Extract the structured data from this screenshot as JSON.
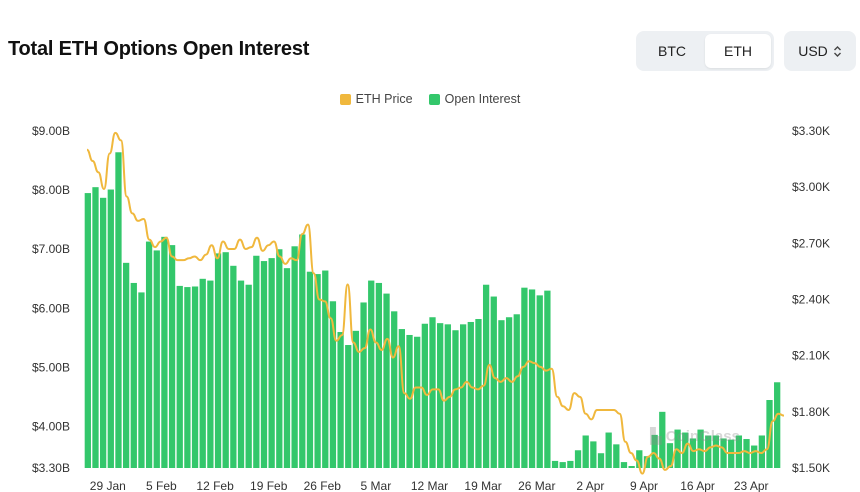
{
  "header": {
    "title": "Total ETH Options Open Interest",
    "asset_tabs": [
      {
        "label": "BTC",
        "active": false
      },
      {
        "label": "ETH",
        "active": true
      }
    ],
    "currency": {
      "label": "USD",
      "icon": "chevron-up-down-icon"
    }
  },
  "colors": {
    "price": "#f0b83d",
    "open_interest": "#33c76b",
    "gridline": "#eeeeee"
  },
  "chart_data": {
    "type": "bar",
    "title": "Total ETH Options Open Interest",
    "legend": {
      "position": "top-center",
      "entries": [
        "ETH Price",
        "Open Interest"
      ]
    },
    "grid": false,
    "x_tick_labels": [
      "29 Jan",
      "5 Feb",
      "12 Feb",
      "19 Feb",
      "26 Feb",
      "5 Mar",
      "12 Mar",
      "19 Mar",
      "26 Mar",
      "2 Apr",
      "9 Apr",
      "16 Apr",
      "23 Apr"
    ],
    "left_axis": {
      "ticks": [
        "$3.30B",
        "$4.00B",
        "$5.00B",
        "$6.00B",
        "$7.00B",
        "$8.00B",
        "$9.00B"
      ],
      "ylim": [
        3.3,
        9.0
      ],
      "unit": "B USD"
    },
    "right_axis": {
      "ticks": [
        "$1.50K",
        "$1.80K",
        "$2.10K",
        "$2.40K",
        "$2.70K",
        "$3.00K",
        "$3.30K"
      ],
      "ylim": [
        1.5,
        3.3
      ],
      "unit": "K USD"
    },
    "x_start_date": "2025-01-29",
    "series": [
      {
        "name": "Open Interest",
        "type": "bar",
        "axis": "left",
        "values": [
          7.95,
          8.05,
          7.87,
          8.01,
          8.64,
          6.77,
          6.43,
          6.27,
          7.13,
          6.98,
          7.21,
          7.07,
          6.38,
          6.36,
          6.37,
          6.5,
          6.47,
          6.93,
          6.95,
          6.72,
          6.47,
          6.4,
          6.89,
          6.8,
          6.85,
          7.0,
          6.68,
          7.05,
          7.25,
          6.62,
          6.58,
          6.64,
          6.12,
          5.6,
          5.38,
          5.62,
          6.1,
          6.47,
          6.43,
          6.25,
          5.95,
          5.65,
          5.55,
          5.52,
          5.74,
          5.85,
          5.75,
          5.73,
          5.63,
          5.73,
          5.77,
          5.82,
          6.4,
          6.2,
          5.8,
          5.85,
          5.9,
          6.35,
          6.32,
          6.22,
          6.3,
          3.42,
          3.4,
          3.42,
          3.6,
          3.85,
          3.75,
          3.55,
          3.9,
          3.7,
          3.4,
          3.28,
          3.6,
          3.5,
          3.86,
          4.25,
          3.72,
          3.95,
          3.9,
          3.8,
          3.95,
          3.85,
          3.85,
          3.8,
          3.78,
          3.85,
          3.79,
          3.68,
          3.85,
          4.45,
          4.75
        ]
      },
      {
        "name": "ETH Price",
        "type": "line",
        "axis": "right",
        "values": [
          3.2,
          3.14,
          3.08,
          2.99,
          3.18,
          3.29,
          3.25,
          2.95,
          2.86,
          2.82,
          2.83,
          2.72,
          2.68,
          2.71,
          2.73,
          2.63,
          2.61,
          2.61,
          2.62,
          2.63,
          2.61,
          2.64,
          2.69,
          2.62,
          2.71,
          2.67,
          2.67,
          2.72,
          2.67,
          2.68,
          2.73,
          2.66,
          2.69,
          2.71,
          2.63,
          2.59,
          2.62,
          2.61,
          2.75,
          2.8,
          2.54,
          2.4,
          2.39,
          2.3,
          2.18,
          2.21,
          2.48,
          2.17,
          2.12,
          2.14,
          2.24,
          2.17,
          2.13,
          2.19,
          2.09,
          2.15,
          1.9,
          1.87,
          1.93,
          1.93,
          1.89,
          1.92,
          1.92,
          1.86,
          1.88,
          1.92,
          1.93,
          1.96,
          1.93,
          1.92,
          1.94,
          2.05,
          1.98,
          1.96,
          1.98,
          1.96,
          1.99,
          2.04,
          2.07,
          2.06,
          2.04,
          2.02,
          2.03,
          1.88,
          1.83,
          1.81,
          1.9,
          1.88,
          1.79,
          1.76,
          1.81,
          1.81,
          1.81,
          1.81,
          1.79,
          1.64,
          1.58,
          1.54,
          1.47,
          1.56,
          1.58,
          1.55,
          1.49,
          1.51,
          1.6,
          1.58,
          1.63,
          1.59,
          1.6,
          1.59,
          1.61,
          1.62,
          1.61,
          1.58,
          1.58,
          1.58,
          1.59,
          1.58,
          1.59,
          1.58,
          1.6,
          1.75,
          1.79,
          1.78
        ]
      }
    ]
  }
}
